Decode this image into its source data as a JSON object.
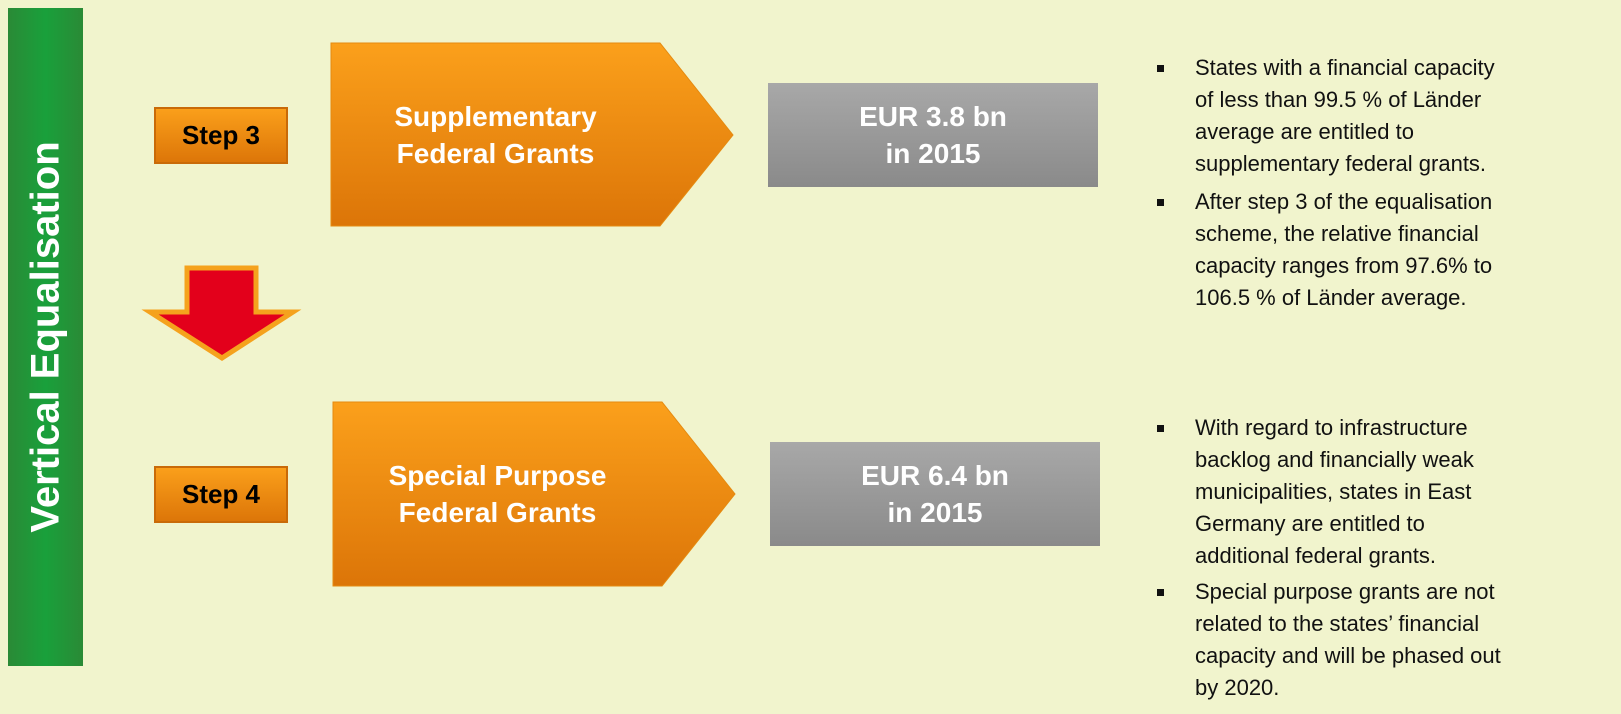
{
  "sidebar": "Vertical Equalisation",
  "steps": [
    {
      "label": "Step 3",
      "title": [
        "Supplementary",
        "Federal Grants"
      ],
      "amount": [
        "EUR 3.8 bn",
        "in 2015"
      ],
      "bullets": [
        [
          "States with a financial capacity",
          "of less than 99.5 % of Länder",
          "average are entitled to",
          "supplementary federal grants."
        ],
        [
          "After step 3 of the equalisation",
          "scheme, the relative financial",
          "capacity ranges from 97.6% to",
          "106.5 % of Länder average."
        ]
      ]
    },
    {
      "label": "Step 4",
      "title": [
        "Special Purpose",
        "Federal Grants"
      ],
      "amount": [
        "EUR 6.4 bn",
        "in 2015"
      ],
      "bullets": [
        [
          "With regard to infrastructure",
          "backlog and financially weak",
          "municipalities, states in East",
          "Germany are entitled to",
          "additional federal grants."
        ],
        [
          "Special purpose grants are not",
          "related to the states’ financial",
          "capacity and will be phased out",
          "by 2020."
        ]
      ]
    }
  ]
}
